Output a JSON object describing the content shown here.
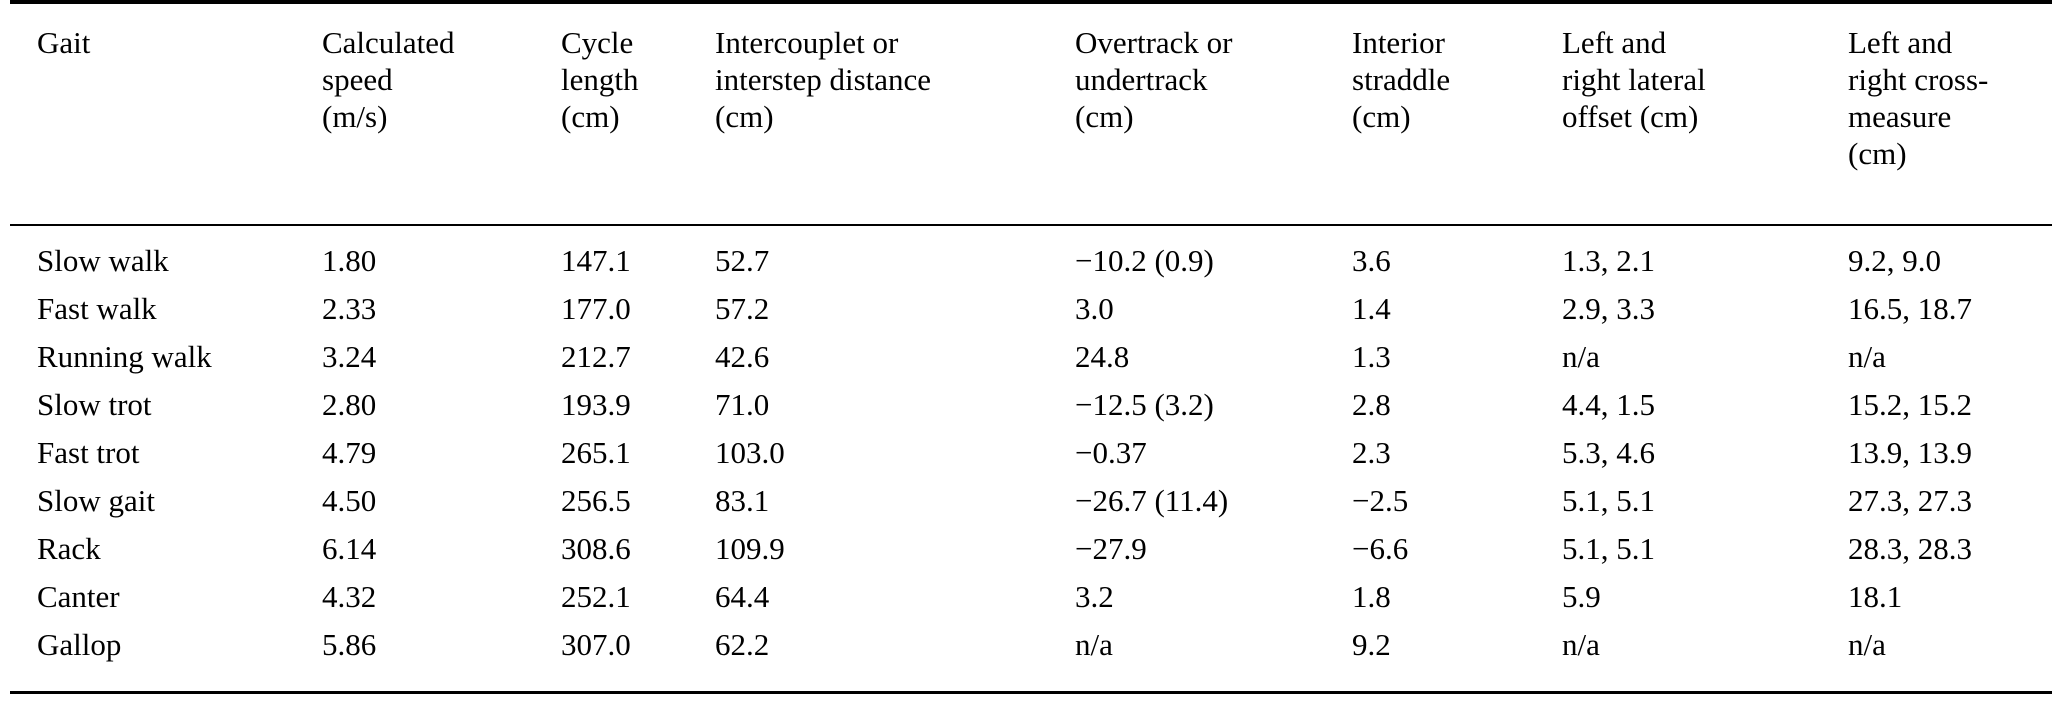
{
  "table": {
    "columns": [
      "Gait",
      "Calculated\nspeed\n(m/s)",
      "Cycle\nlength\n(cm)",
      "Intercouplet or\ninterstep distance\n(cm)",
      "Overtrack or\nundertrack\n(cm)",
      "Interior\nstraddle\n(cm)",
      "Left and\nright lateral\noffset (cm)",
      "Left and\nright cross-\nmeasure\n(cm)"
    ],
    "rows": [
      {
        "cells": [
          "Slow walk",
          "1.80",
          "147.1",
          "52.7",
          "−10.2 (0.9)",
          "3.6",
          "1.3, 2.1",
          "9.2, 9.0"
        ]
      },
      {
        "cells": [
          "Fast walk",
          "2.33",
          "177.0",
          "57.2",
          "3.0",
          "1.4",
          "2.9, 3.3",
          "16.5, 18.7"
        ]
      },
      {
        "cells": [
          "Running walk",
          "3.24",
          "212.7",
          "42.6",
          "24.8",
          "1.3",
          "n/a",
          "n/a"
        ]
      },
      {
        "cells": [
          "Slow trot",
          "2.80",
          "193.9",
          "71.0",
          "−12.5 (3.2)",
          "2.8",
          "4.4, 1.5",
          "15.2, 15.2"
        ]
      },
      {
        "cells": [
          "Fast trot",
          "4.79",
          "265.1",
          "103.0",
          "−0.37",
          "2.3",
          "5.3, 4.6",
          "13.9, 13.9"
        ]
      },
      {
        "cells": [
          "Slow gait",
          "4.50",
          "256.5",
          "83.1",
          "−26.7 (11.4)",
          "−2.5",
          "5.1, 5.1",
          "27.3, 27.3"
        ]
      },
      {
        "cells": [
          "Rack",
          "6.14",
          "308.6",
          "109.9",
          "−27.9",
          "−6.6",
          "5.1, 5.1",
          "28.3, 28.3"
        ]
      },
      {
        "cells": [
          "Canter",
          "4.32",
          "252.1",
          "64.4",
          "3.2",
          "1.8",
          "5.9",
          "18.1"
        ]
      },
      {
        "cells": [
          "Gallop",
          "5.86",
          "307.0",
          "62.2",
          "n/a",
          "9.2",
          "n/a",
          "n/a"
        ]
      }
    ],
    "na_label": "n/a",
    "text_color": "#000000",
    "rule_color": "#000000"
  }
}
